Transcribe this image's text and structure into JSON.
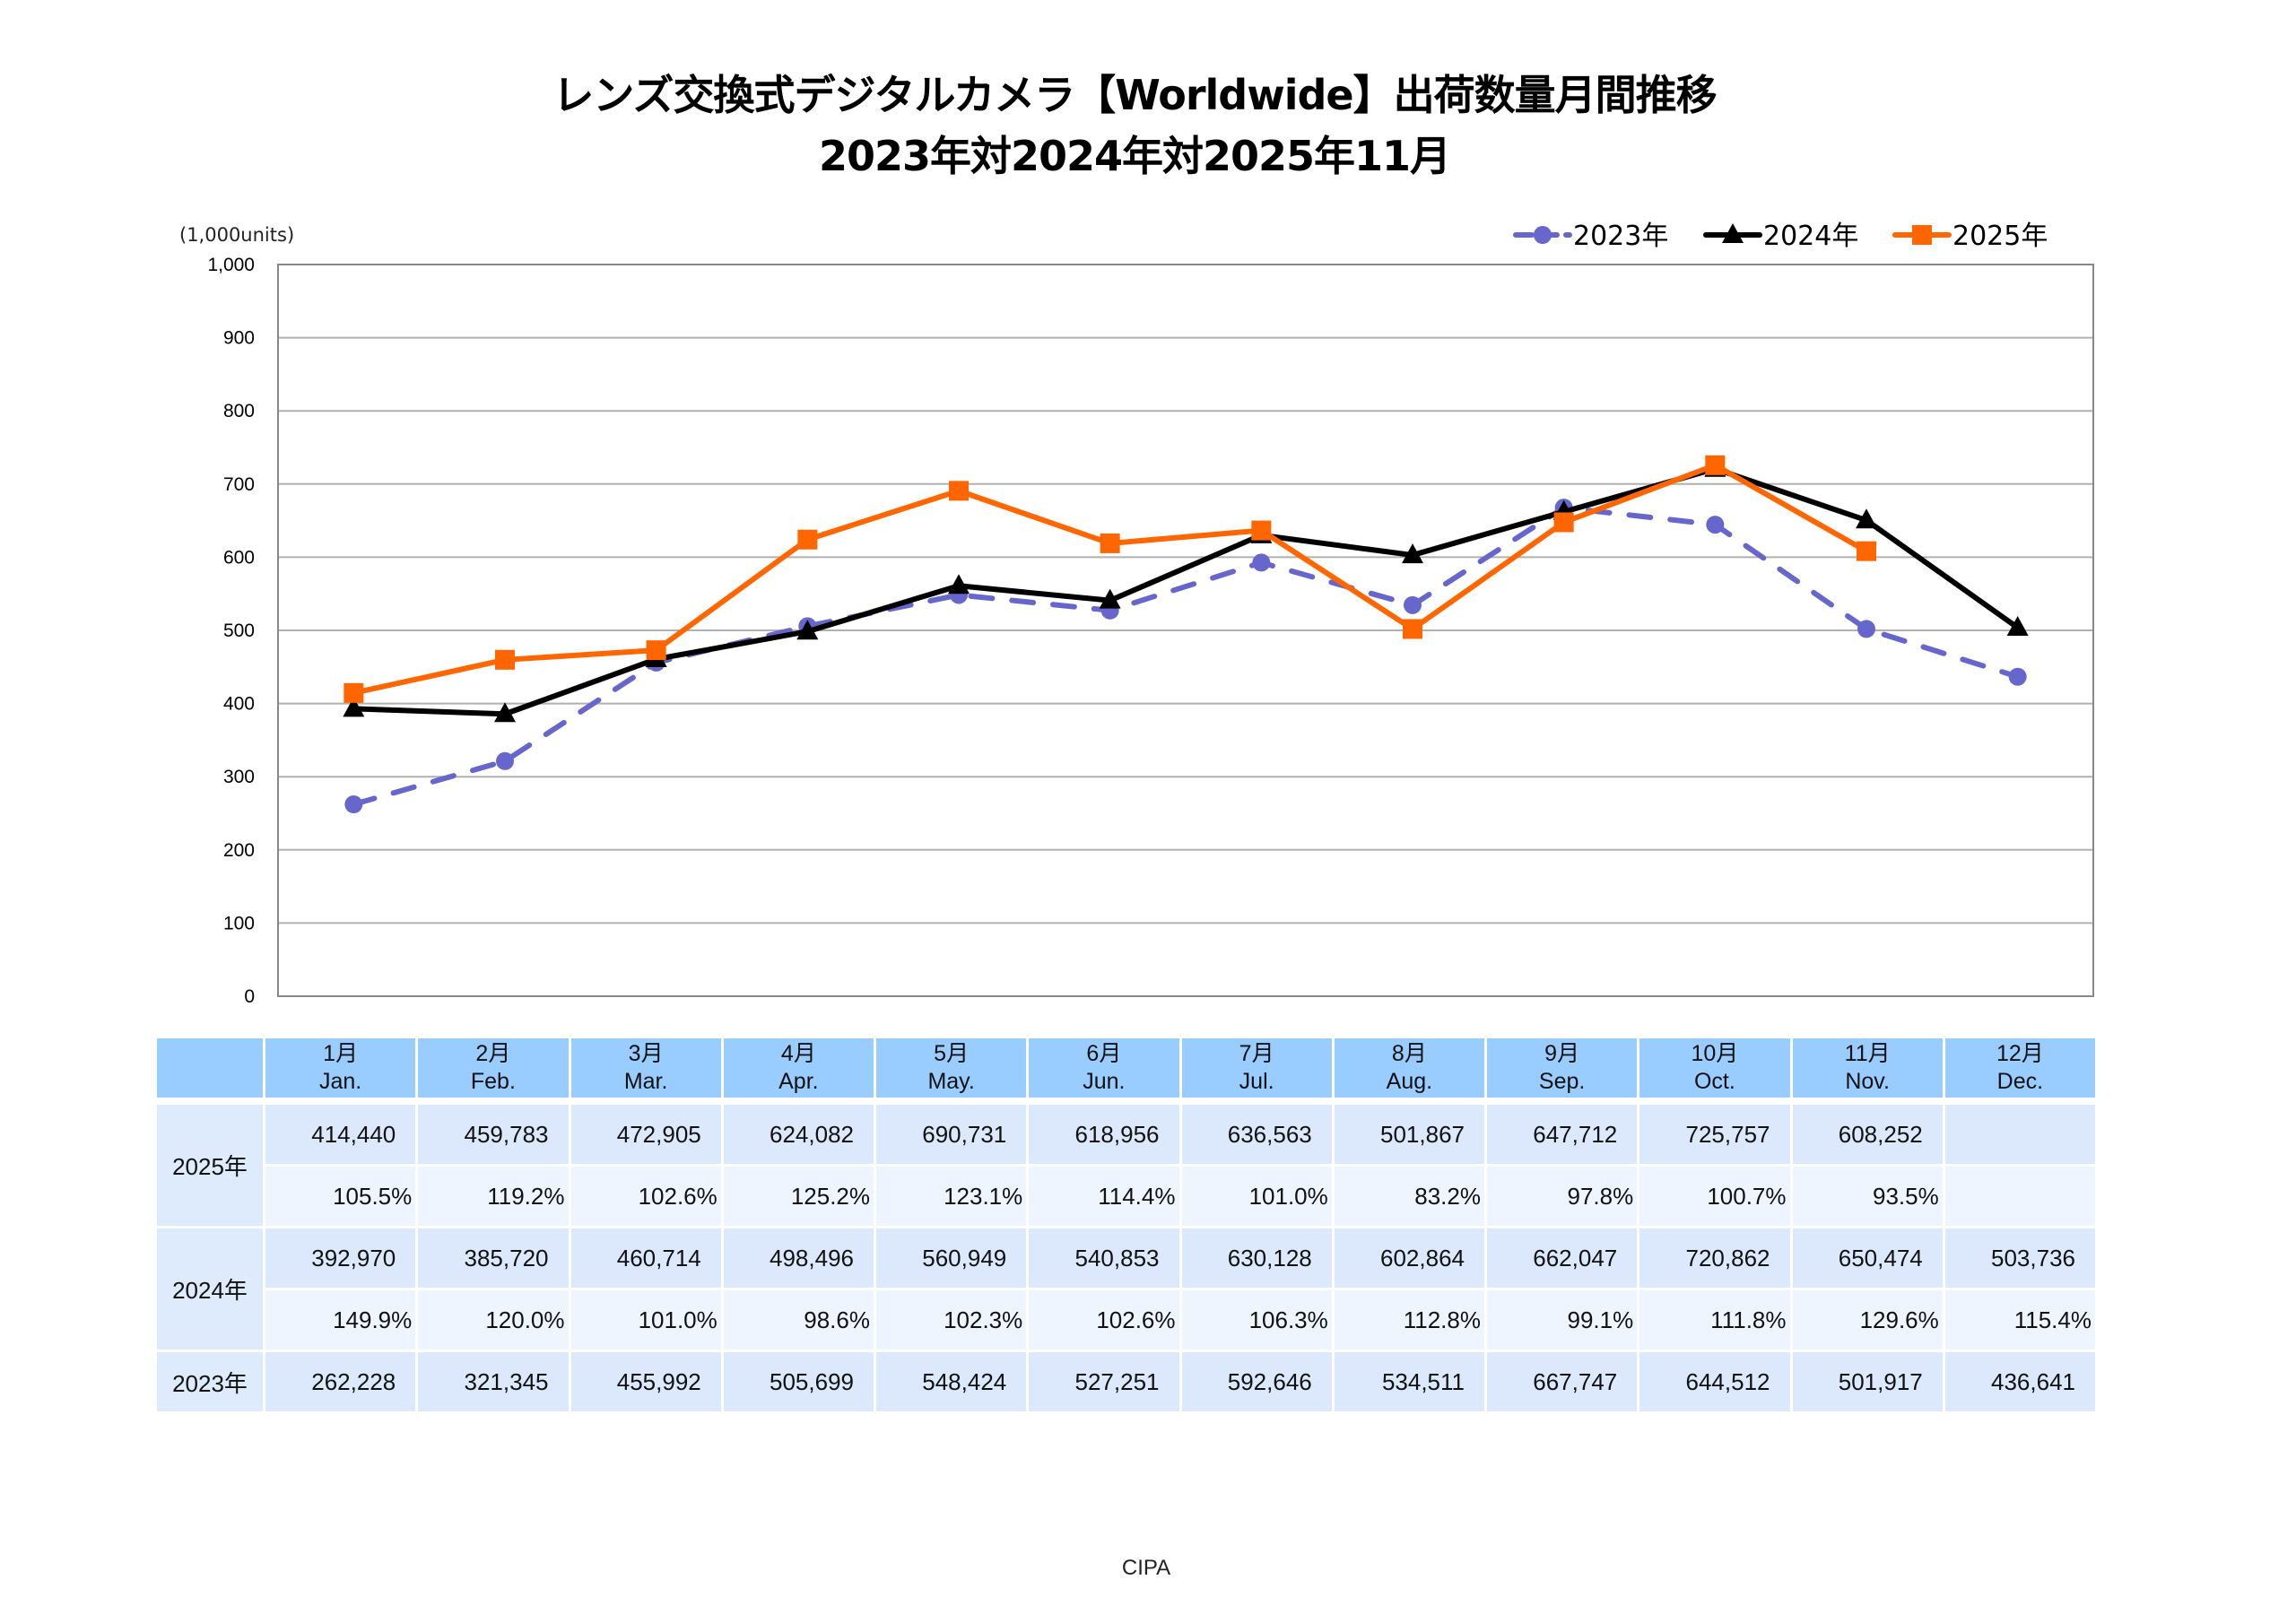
{
  "header": {
    "title_line1": "レンズ交換式デジタルカメラ【Worldwide】出荷数量月間推移",
    "title_line2": "2023年対2024年対2025年11月"
  },
  "chart_data": {
    "type": "line",
    "title": "レンズ交換式デジタルカメラ【Worldwide】出荷数量月間推移 2023年対2024年対2025年11月",
    "ylabel": "(1,000units)",
    "xlabel": "",
    "ylim": [
      0,
      1000
    ],
    "yticks": [
      0,
      100,
      200,
      300,
      400,
      500,
      600,
      700,
      800,
      900,
      1000
    ],
    "ytick_labels": [
      "0",
      "100",
      "200",
      "300",
      "400",
      "500",
      "600",
      "700",
      "800",
      "900",
      "1,000"
    ],
    "grid": true,
    "legend_position": "top-right",
    "categories": [
      "1月",
      "2月",
      "3月",
      "4月",
      "5月",
      "6月",
      "7月",
      "8月",
      "9月",
      "10月",
      "11月",
      "12月"
    ],
    "series": [
      {
        "name": "2023年",
        "color": "#6666CC",
        "dash": "dashed",
        "marker": "circle",
        "values": [
          262.228,
          321.345,
          455.992,
          505.699,
          548.424,
          527.251,
          592.646,
          534.511,
          667.747,
          644.512,
          501.917,
          436.641
        ]
      },
      {
        "name": "2024年",
        "color": "#000000",
        "dash": "solid",
        "marker": "triangle",
        "values": [
          392.97,
          385.72,
          460.714,
          498.496,
          560.949,
          540.853,
          630.128,
          602.864,
          662.047,
          720.862,
          650.474,
          503.736
        ]
      },
      {
        "name": "2025年",
        "color": "#FF6600",
        "dash": "solid",
        "marker": "square",
        "values": [
          414.44,
          459.783,
          472.905,
          624.082,
          690.731,
          618.956,
          636.563,
          501.867,
          647.712,
          725.757,
          608.252,
          null
        ]
      }
    ]
  },
  "table": {
    "months": [
      {
        "jp": "1月",
        "en": "Jan."
      },
      {
        "jp": "2月",
        "en": "Feb."
      },
      {
        "jp": "3月",
        "en": "Mar."
      },
      {
        "jp": "4月",
        "en": "Apr."
      },
      {
        "jp": "5月",
        "en": "May."
      },
      {
        "jp": "6月",
        "en": "Jun."
      },
      {
        "jp": "7月",
        "en": "Jul."
      },
      {
        "jp": "8月",
        "en": "Aug."
      },
      {
        "jp": "9月",
        "en": "Sep."
      },
      {
        "jp": "10月",
        "en": "Oct."
      },
      {
        "jp": "11月",
        "en": "Nov."
      },
      {
        "jp": "12月",
        "en": "Dec."
      }
    ],
    "rows": [
      {
        "year": "2025年",
        "values": [
          "414,440",
          "459,783",
          "472,905",
          "624,082",
          "690,731",
          "618,956",
          "636,563",
          "501,867",
          "647,712",
          "725,757",
          "608,252",
          ""
        ],
        "pct": [
          "105.5%",
          "119.2%",
          "102.6%",
          "125.2%",
          "123.1%",
          "114.4%",
          "101.0%",
          "83.2%",
          "97.8%",
          "100.7%",
          "93.5%",
          ""
        ]
      },
      {
        "year": "2024年",
        "values": [
          "392,970",
          "385,720",
          "460,714",
          "498,496",
          "560,949",
          "540,853",
          "630,128",
          "602,864",
          "662,047",
          "720,862",
          "650,474",
          "503,736"
        ],
        "pct": [
          "149.9%",
          "120.0%",
          "101.0%",
          "98.6%",
          "102.3%",
          "102.6%",
          "106.3%",
          "112.8%",
          "99.1%",
          "111.8%",
          "129.6%",
          "115.4%"
        ]
      },
      {
        "year": "2023年",
        "values": [
          "262,228",
          "321,345",
          "455,992",
          "505,699",
          "548,424",
          "527,251",
          "592,646",
          "534,511",
          "667,747",
          "644,512",
          "501,917",
          "436,641"
        ]
      }
    ]
  },
  "footer": {
    "source": "CIPA"
  }
}
